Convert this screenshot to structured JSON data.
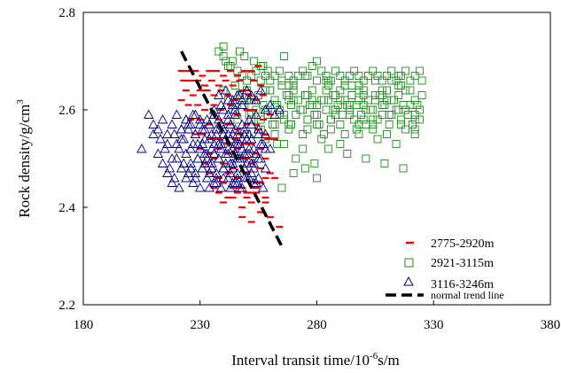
{
  "chart_data": {
    "type": "scatter",
    "xlabel": "Interval transit time/10",
    "xlabel_sup": "-6",
    "xlabel_tail": "s/m",
    "ylabel": "Rock density/g/cm",
    "ylabel_sup": "3",
    "xlim": [
      180,
      380
    ],
    "ylim": [
      2.2,
      2.8
    ],
    "x_ticks": [
      "180",
      "230",
      "280",
      "330",
      "380"
    ],
    "y_ticks": [
      "2.2",
      "2.4",
      "2.6",
      "2.8"
    ],
    "x_tick_values": [
      180,
      230,
      280,
      330,
      380
    ],
    "y_tick_values": [
      2.2,
      2.4,
      2.6,
      2.8
    ],
    "grid": false,
    "legend_position": "bottom-right",
    "series": [
      {
        "name": "2775-2920m",
        "marker": "dash",
        "color": "#ff0000",
        "x": [
          222,
          225,
          228,
          231,
          234,
          237,
          240,
          243,
          246,
          249,
          252,
          255,
          223,
          226,
          229,
          232,
          235,
          238,
          241,
          244,
          247,
          250,
          253,
          256,
          224,
          227,
          230,
          233,
          236,
          239,
          242,
          245,
          248,
          251,
          254,
          257,
          222,
          225,
          229,
          232,
          236,
          239,
          243,
          246,
          250,
          253,
          257,
          260,
          226,
          230,
          234,
          238,
          242,
          246,
          250,
          254,
          258,
          262,
          228,
          231,
          235,
          238,
          242,
          245,
          249,
          252,
          256,
          259,
          230,
          234,
          238,
          242,
          246,
          250,
          254,
          258,
          232,
          236,
          240,
          244,
          248,
          252,
          256,
          260,
          234,
          238,
          242,
          246,
          250,
          254,
          258,
          262,
          236,
          240,
          244,
          248,
          252,
          256,
          238,
          242,
          246,
          250,
          254,
          258,
          240,
          244,
          248,
          252,
          256,
          243,
          247,
          251,
          255,
          259,
          246,
          250,
          254,
          258,
          248,
          252,
          256,
          260,
          264
        ],
        "y": [
          2.68,
          2.68,
          2.68,
          2.67,
          2.68,
          2.68,
          2.67,
          2.68,
          2.67,
          2.68,
          2.68,
          2.69,
          2.66,
          2.66,
          2.66,
          2.65,
          2.66,
          2.65,
          2.66,
          2.65,
          2.66,
          2.64,
          2.66,
          2.65,
          2.64,
          2.63,
          2.64,
          2.64,
          2.63,
          2.64,
          2.63,
          2.62,
          2.64,
          2.63,
          2.62,
          2.63,
          2.62,
          2.61,
          2.61,
          2.6,
          2.61,
          2.6,
          2.61,
          2.59,
          2.6,
          2.6,
          2.58,
          2.59,
          2.58,
          2.58,
          2.57,
          2.58,
          2.57,
          2.56,
          2.57,
          2.57,
          2.55,
          2.54,
          2.55,
          2.55,
          2.54,
          2.54,
          2.53,
          2.54,
          2.53,
          2.53,
          2.52,
          2.54,
          2.52,
          2.51,
          2.52,
          2.51,
          2.52,
          2.5,
          2.51,
          2.5,
          2.49,
          2.5,
          2.49,
          2.48,
          2.5,
          2.49,
          2.48,
          2.47,
          2.47,
          2.46,
          2.47,
          2.46,
          2.47,
          2.45,
          2.46,
          2.46,
          2.44,
          2.45,
          2.44,
          2.44,
          2.43,
          2.45,
          2.43,
          2.42,
          2.43,
          2.42,
          2.43,
          2.41,
          2.41,
          2.42,
          2.4,
          2.41,
          2.39,
          2.57,
          2.55,
          2.53,
          2.56,
          2.54,
          2.44,
          2.43,
          2.44,
          2.42,
          2.38,
          2.37,
          2.39,
          2.38,
          2.36
        ]
      },
      {
        "name": "2921-3115m",
        "marker": "square",
        "color": "#1a8a1a",
        "x": [
          238,
          240,
          242,
          244,
          246,
          248,
          250,
          252,
          254,
          256,
          258,
          260,
          262,
          264,
          266,
          268,
          270,
          272,
          274,
          276,
          278,
          280,
          282,
          284,
          286,
          288,
          290,
          292,
          294,
          296,
          298,
          300,
          302,
          304,
          306,
          308,
          310,
          312,
          314,
          316,
          318,
          320,
          322,
          324,
          240,
          245,
          250,
          255,
          260,
          265,
          270,
          275,
          280,
          285,
          290,
          295,
          300,
          305,
          310,
          315,
          320,
          325,
          242,
          247,
          252,
          257,
          262,
          267,
          272,
          277,
          282,
          287,
          292,
          297,
          302,
          307,
          312,
          317,
          322,
          244,
          249,
          254,
          259,
          264,
          269,
          274,
          279,
          284,
          289,
          294,
          299,
          304,
          309,
          314,
          319,
          324,
          246,
          251,
          256,
          261,
          266,
          271,
          276,
          281,
          286,
          291,
          296,
          301,
          306,
          311,
          316,
          321,
          248,
          253,
          258,
          263,
          268,
          273,
          278,
          283,
          288,
          293,
          298,
          303,
          308,
          313,
          318,
          323,
          255,
          262,
          269,
          276,
          283,
          290,
          297,
          304,
          311,
          318,
          258,
          266,
          274,
          282,
          290,
          298,
          306,
          314,
          322,
          260,
          268,
          276,
          284,
          292,
          300,
          308,
          316,
          265,
          275,
          285,
          295,
          305,
          315,
          325,
          270,
          280,
          290,
          300,
          310,
          320,
          275,
          285,
          295,
          305,
          315,
          250,
          256,
          262,
          268,
          274,
          280,
          286,
          292,
          298,
          304,
          310,
          316,
          322,
          245,
          252,
          259,
          266,
          273,
          280,
          287,
          294,
          301,
          308,
          315,
          322,
          248,
          258,
          268,
          278,
          288,
          298,
          308,
          318,
          252,
          264,
          276,
          288,
          300,
          312,
          324,
          256,
          270,
          284,
          298,
          312,
          262,
          278,
          294,
          310,
          268,
          286,
          304,
          322,
          240,
          241,
          243,
          247,
          249,
          253,
          257,
          259,
          263,
          271,
          279,
          285,
          293,
          301,
          309,
          317,
          265,
          270,
          275,
          280
        ],
        "y": [
          2.72,
          2.71,
          2.69,
          2.7,
          2.68,
          2.67,
          2.66,
          2.67,
          2.68,
          2.69,
          2.67,
          2.66,
          2.67,
          2.68,
          2.71,
          2.67,
          2.66,
          2.67,
          2.68,
          2.67,
          2.69,
          2.7,
          2.68,
          2.67,
          2.66,
          2.68,
          2.67,
          2.66,
          2.67,
          2.68,
          2.67,
          2.66,
          2.67,
          2.68,
          2.67,
          2.66,
          2.67,
          2.68,
          2.66,
          2.67,
          2.68,
          2.66,
          2.67,
          2.68,
          2.64,
          2.65,
          2.64,
          2.63,
          2.64,
          2.65,
          2.64,
          2.63,
          2.66,
          2.65,
          2.64,
          2.63,
          2.64,
          2.63,
          2.64,
          2.65,
          2.64,
          2.63,
          2.62,
          2.63,
          2.62,
          2.61,
          2.62,
          2.63,
          2.62,
          2.61,
          2.62,
          2.63,
          2.62,
          2.61,
          2.62,
          2.63,
          2.62,
          2.61,
          2.62,
          2.6,
          2.61,
          2.6,
          2.59,
          2.6,
          2.61,
          2.6,
          2.59,
          2.6,
          2.61,
          2.6,
          2.59,
          2.6,
          2.61,
          2.6,
          2.59,
          2.6,
          2.58,
          2.59,
          2.58,
          2.57,
          2.58,
          2.59,
          2.58,
          2.57,
          2.58,
          2.59,
          2.58,
          2.57,
          2.58,
          2.59,
          2.58,
          2.57,
          2.61,
          2.62,
          2.6,
          2.61,
          2.62,
          2.6,
          2.61,
          2.62,
          2.6,
          2.61,
          2.62,
          2.6,
          2.61,
          2.62,
          2.6,
          2.61,
          2.56,
          2.55,
          2.57,
          2.56,
          2.55,
          2.57,
          2.56,
          2.58,
          2.57,
          2.56,
          2.54,
          2.53,
          2.52,
          2.54,
          2.53,
          2.55,
          2.54,
          2.53,
          2.55,
          2.64,
          2.65,
          2.63,
          2.64,
          2.65,
          2.63,
          2.64,
          2.65,
          2.66,
          2.67,
          2.66,
          2.65,
          2.66,
          2.67,
          2.66,
          2.62,
          2.61,
          2.62,
          2.61,
          2.62,
          2.61,
          2.63,
          2.62,
          2.63,
          2.62,
          2.63,
          2.55,
          2.56,
          2.57,
          2.56,
          2.55,
          2.57,
          2.56,
          2.55,
          2.57,
          2.56,
          2.55,
          2.57,
          2.56,
          2.6,
          2.59,
          2.6,
          2.59,
          2.6,
          2.59,
          2.6,
          2.59,
          2.6,
          2.59,
          2.6,
          2.59,
          2.63,
          2.64,
          2.63,
          2.64,
          2.63,
          2.64,
          2.63,
          2.64,
          2.58,
          2.59,
          2.58,
          2.59,
          2.58,
          2.59,
          2.58,
          2.66,
          2.65,
          2.66,
          2.65,
          2.66,
          2.61,
          2.62,
          2.61,
          2.62,
          2.57,
          2.58,
          2.57,
          2.58,
          2.73,
          2.7,
          2.69,
          2.72,
          2.71,
          2.7,
          2.69,
          2.68,
          2.53,
          2.5,
          2.49,
          2.52,
          2.51,
          2.5,
          2.49,
          2.48,
          2.44,
          2.47,
          2.48,
          2.46
        ]
      },
      {
        "name": "3116-3246m",
        "marker": "triangle",
        "color": "#000080",
        "x": [
          205,
          208,
          210,
          212,
          214,
          216,
          218,
          220,
          222,
          224,
          226,
          228,
          230,
          232,
          234,
          236,
          238,
          240,
          242,
          244,
          246,
          248,
          250,
          252,
          254,
          256,
          258,
          260,
          262,
          264,
          210,
          213,
          216,
          219,
          222,
          225,
          228,
          231,
          234,
          237,
          240,
          243,
          246,
          249,
          252,
          255,
          258,
          212,
          215,
          218,
          221,
          224,
          227,
          230,
          233,
          236,
          239,
          242,
          245,
          248,
          251,
          254,
          257,
          260,
          214,
          217,
          220,
          223,
          226,
          229,
          232,
          235,
          238,
          241,
          244,
          247,
          250,
          253,
          256,
          216,
          219,
          222,
          225,
          228,
          231,
          234,
          237,
          240,
          243,
          246,
          249,
          252,
          255,
          258,
          218,
          221,
          224,
          227,
          230,
          233,
          236,
          239,
          242,
          245,
          248,
          251,
          254,
          257,
          220,
          223,
          226,
          229,
          232,
          235,
          238,
          241,
          244,
          247,
          250,
          253,
          256,
          222,
          225,
          228,
          231,
          234,
          237,
          240,
          243,
          246,
          249,
          252,
          255,
          224,
          227,
          230,
          233,
          236,
          239,
          242,
          245,
          248,
          251,
          254,
          226,
          229,
          232,
          235,
          238,
          241,
          244,
          247,
          250,
          253,
          228,
          231,
          234,
          237,
          240,
          243,
          246,
          249,
          252,
          230,
          233,
          236,
          239,
          242,
          245,
          248,
          251,
          232,
          235,
          238,
          241,
          244,
          247,
          250,
          234,
          237,
          240,
          243,
          246,
          249,
          236,
          239,
          242,
          245,
          248,
          251,
          238,
          241,
          244,
          247,
          250,
          240,
          243,
          246,
          249,
          252,
          242,
          245,
          248,
          251,
          244,
          247,
          250,
          253,
          246,
          249,
          252,
          255,
          258
        ],
        "y": [
          2.52,
          2.59,
          2.57,
          2.56,
          2.58,
          2.55,
          2.57,
          2.59,
          2.56,
          2.58,
          2.57,
          2.59,
          2.58,
          2.56,
          2.57,
          2.59,
          2.58,
          2.6,
          2.59,
          2.61,
          2.63,
          2.62,
          2.64,
          2.63,
          2.62,
          2.64,
          2.6,
          2.61,
          2.59,
          2.6,
          2.55,
          2.54,
          2.53,
          2.55,
          2.54,
          2.56,
          2.55,
          2.53,
          2.54,
          2.56,
          2.55,
          2.54,
          2.53,
          2.55,
          2.54,
          2.56,
          2.55,
          2.51,
          2.52,
          2.5,
          2.52,
          2.51,
          2.53,
          2.52,
          2.5,
          2.51,
          2.53,
          2.52,
          2.51,
          2.5,
          2.52,
          2.51,
          2.53,
          2.52,
          2.49,
          2.48,
          2.5,
          2.49,
          2.48,
          2.5,
          2.49,
          2.48,
          2.5,
          2.49,
          2.48,
          2.5,
          2.49,
          2.48,
          2.5,
          2.47,
          2.46,
          2.48,
          2.47,
          2.46,
          2.48,
          2.47,
          2.46,
          2.48,
          2.47,
          2.46,
          2.48,
          2.47,
          2.46,
          2.48,
          2.45,
          2.44,
          2.46,
          2.45,
          2.44,
          2.46,
          2.45,
          2.44,
          2.46,
          2.45,
          2.44,
          2.46,
          2.45,
          2.44,
          2.53,
          2.54,
          2.52,
          2.53,
          2.54,
          2.52,
          2.53,
          2.54,
          2.52,
          2.53,
          2.54,
          2.52,
          2.53,
          2.56,
          2.57,
          2.55,
          2.56,
          2.57,
          2.55,
          2.56,
          2.57,
          2.55,
          2.56,
          2.57,
          2.55,
          2.58,
          2.59,
          2.57,
          2.58,
          2.59,
          2.57,
          2.58,
          2.59,
          2.57,
          2.58,
          2.59,
          2.49,
          2.5,
          2.51,
          2.49,
          2.5,
          2.51,
          2.49,
          2.5,
          2.51,
          2.49,
          2.47,
          2.48,
          2.49,
          2.47,
          2.48,
          2.49,
          2.47,
          2.48,
          2.49,
          2.52,
          2.51,
          2.53,
          2.52,
          2.51,
          2.53,
          2.52,
          2.51,
          2.54,
          2.55,
          2.53,
          2.54,
          2.55,
          2.53,
          2.54,
          2.44,
          2.45,
          2.46,
          2.44,
          2.45,
          2.46,
          2.6,
          2.61,
          2.62,
          2.6,
          2.61,
          2.62,
          2.63,
          2.64,
          2.62,
          2.63,
          2.64,
          2.48,
          2.49,
          2.5,
          2.48,
          2.49,
          2.55,
          2.56,
          2.54,
          2.55,
          2.45,
          2.44,
          2.46,
          2.45,
          2.5,
          2.51,
          2.49,
          2.5,
          2.52
        ]
      },
      {
        "name": "normal trend line",
        "marker": "dashed-line",
        "color": "#000000",
        "x": [
          222,
          265
        ],
        "y": [
          2.72,
          2.32
        ]
      }
    ]
  }
}
